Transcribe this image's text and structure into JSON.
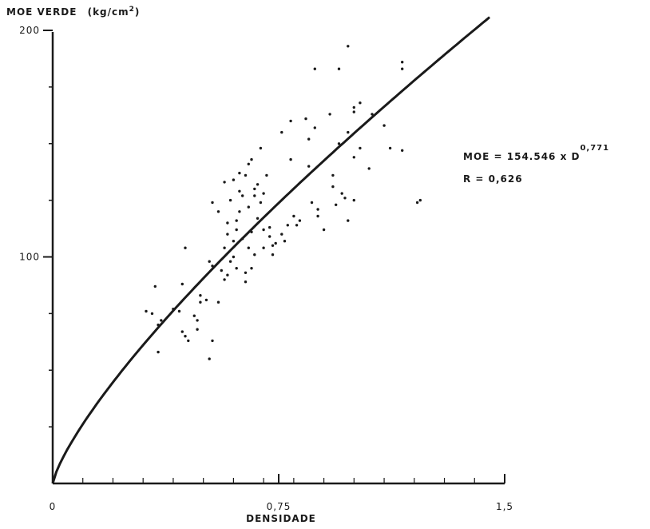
{
  "chart_data": {
    "type": "scatter",
    "title": "",
    "ylabel": "MOE VERDE",
    "ylabel_unit": "(kg/cm",
    "ylabel_unit_sup": "2",
    "ylabel_unit_close": ")",
    "xlabel": "DENSIDADE",
    "xlim": [
      0,
      1.5
    ],
    "ylim": [
      0,
      200
    ],
    "x_ticks": [
      {
        "value": 0,
        "label": "0"
      },
      {
        "value": 0.75,
        "label": "0,75"
      },
      {
        "value": 1.5,
        "label": "1,5"
      }
    ],
    "y_ticks": [
      {
        "value": 100,
        "label": "100"
      },
      {
        "value": 200,
        "label": "200"
      }
    ],
    "grid": false,
    "equation": {
      "line1": "MOE = 154.546 x D",
      "exponent": "0,771",
      "line2": "R = 0,626"
    },
    "fit": {
      "a": 154.546,
      "b": 0.771,
      "x_max": 1.45
    },
    "points": [
      [
        0.31,
        76
      ],
      [
        0.33,
        75
      ],
      [
        0.34,
        87
      ],
      [
        0.35,
        70
      ],
      [
        0.35,
        58
      ],
      [
        0.36,
        72
      ],
      [
        0.4,
        77
      ],
      [
        0.42,
        76
      ],
      [
        0.43,
        88
      ],
      [
        0.43,
        67
      ],
      [
        0.44,
        104
      ],
      [
        0.44,
        65
      ],
      [
        0.45,
        63
      ],
      [
        0.47,
        74
      ],
      [
        0.48,
        72
      ],
      [
        0.48,
        68
      ],
      [
        0.49,
        80
      ],
      [
        0.49,
        83
      ],
      [
        0.51,
        81
      ],
      [
        0.52,
        55
      ],
      [
        0.52,
        98
      ],
      [
        0.53,
        63
      ],
      [
        0.53,
        124
      ],
      [
        0.53,
        96
      ],
      [
        0.55,
        80
      ],
      [
        0.55,
        120
      ],
      [
        0.56,
        94
      ],
      [
        0.57,
        133
      ],
      [
        0.57,
        104
      ],
      [
        0.57,
        90
      ],
      [
        0.58,
        92
      ],
      [
        0.58,
        110
      ],
      [
        0.58,
        115
      ],
      [
        0.59,
        125
      ],
      [
        0.59,
        98
      ],
      [
        0.6,
        100
      ],
      [
        0.6,
        134
      ],
      [
        0.6,
        107
      ],
      [
        0.61,
        116
      ],
      [
        0.61,
        95
      ],
      [
        0.61,
        112
      ],
      [
        0.62,
        120
      ],
      [
        0.62,
        137
      ],
      [
        0.62,
        129
      ],
      [
        0.63,
        127
      ],
      [
        0.63,
        108
      ],
      [
        0.64,
        93
      ],
      [
        0.64,
        89
      ],
      [
        0.64,
        136
      ],
      [
        0.65,
        141
      ],
      [
        0.65,
        122
      ],
      [
        0.65,
        104
      ],
      [
        0.66,
        143
      ],
      [
        0.66,
        95
      ],
      [
        0.66,
        111
      ],
      [
        0.67,
        130
      ],
      [
        0.67,
        127
      ],
      [
        0.67,
        101
      ],
      [
        0.68,
        117
      ],
      [
        0.68,
        132
      ],
      [
        0.69,
        148
      ],
      [
        0.69,
        124
      ],
      [
        0.7,
        128
      ],
      [
        0.7,
        112
      ],
      [
        0.7,
        104
      ],
      [
        0.71,
        136
      ],
      [
        0.72,
        109
      ],
      [
        0.72,
        113
      ],
      [
        0.73,
        105
      ],
      [
        0.73,
        101
      ],
      [
        0.74,
        106
      ],
      [
        0.76,
        155
      ],
      [
        0.76,
        110
      ],
      [
        0.77,
        107
      ],
      [
        0.78,
        114
      ],
      [
        0.79,
        160
      ],
      [
        0.79,
        143
      ],
      [
        0.8,
        118
      ],
      [
        0.81,
        114
      ],
      [
        0.82,
        116
      ],
      [
        0.84,
        161
      ],
      [
        0.85,
        152
      ],
      [
        0.85,
        140
      ],
      [
        0.86,
        124
      ],
      [
        0.87,
        183
      ],
      [
        0.87,
        157
      ],
      [
        0.88,
        121
      ],
      [
        0.88,
        118
      ],
      [
        0.9,
        112
      ],
      [
        0.92,
        163
      ],
      [
        0.93,
        136
      ],
      [
        0.93,
        131
      ],
      [
        0.94,
        123
      ],
      [
        0.95,
        183
      ],
      [
        0.95,
        150
      ],
      [
        0.96,
        128
      ],
      [
        0.97,
        126
      ],
      [
        0.98,
        193
      ],
      [
        0.98,
        155
      ],
      [
        0.98,
        116
      ],
      [
        1.0,
        166
      ],
      [
        1.0,
        164
      ],
      [
        1.0,
        144
      ],
      [
        1.0,
        125
      ],
      [
        1.02,
        168
      ],
      [
        1.02,
        148
      ],
      [
        1.05,
        139
      ],
      [
        1.06,
        163
      ],
      [
        1.1,
        158
      ],
      [
        1.12,
        148
      ],
      [
        1.16,
        186
      ],
      [
        1.16,
        183
      ],
      [
        1.16,
        147
      ],
      [
        1.21,
        124
      ],
      [
        1.22,
        125
      ]
    ]
  }
}
